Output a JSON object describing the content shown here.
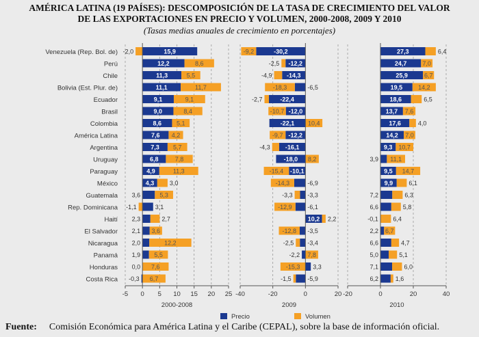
{
  "title_line1": "AMÉRICA LATINA (19 PAÍSES): DESCOMPOSICIÓN DE LA TASA DE CRECIMIENTO DEL VALOR",
  "title_line2": "DE LAS EXPORTACIONES EN PRECIO Y VOLUMEN, 2000-2008, 2009 Y 2010",
  "subtitle": "(Tasas medias anuales de crecimiento en porcentajes)",
  "source_label": "Fuente:",
  "source_text": "Comisión Económica para América Latina y el Caribe (CEPAL), sobre la base de información oficial.",
  "colors": {
    "precio": "#1b3990",
    "volumen": "#f5a025"
  },
  "chart_data": {
    "type": "bar",
    "orientation": "horizontal-stacked-diverging",
    "categories": [
      "Venezuela (Rep. Bol. de)",
      "Perú",
      "Chile",
      "Bolivia (Est. Plur. de)",
      "Ecuador",
      "Brasil",
      "Colombia",
      "América Latina",
      "Argentina",
      "Uruguay",
      "Paraguay",
      "México",
      "Guatemala",
      "Rep. Dominicana",
      "Haití",
      "El Salvador",
      "Nicaragua",
      "Panamá",
      "Honduras",
      "Costa Rica"
    ],
    "legend": [
      "Precio",
      "Volumen"
    ],
    "legend_position": "bottom",
    "grid": true,
    "panels": [
      {
        "xlabel": "2000-2008",
        "xlim": [
          -5,
          25
        ],
        "ticks": [
          -5,
          0,
          5,
          10,
          15,
          20,
          25
        ],
        "precio": [
          15.9,
          12.2,
          11.3,
          11.1,
          9.1,
          9.0,
          8.6,
          7.6,
          7.3,
          6.8,
          4.9,
          4.3,
          3.6,
          3.1,
          2.3,
          2.1,
          2.0,
          1.9,
          0.0,
          -0.3
        ],
        "volumen": [
          -2.0,
          8.6,
          5.5,
          11.7,
          9.1,
          8.4,
          5.1,
          4.2,
          5.7,
          7.8,
          11.3,
          3.0,
          5.3,
          -1.1,
          2.7,
          3.6,
          12.2,
          5.5,
          7.6,
          6.7
        ]
      },
      {
        "xlabel": "2009",
        "xlim": [
          -40,
          20
        ],
        "ticks": [
          -40,
          -20,
          0,
          20
        ],
        "precio": [
          -30.2,
          -12.2,
          -14.3,
          -6.5,
          -22.4,
          -12.0,
          -22.1,
          -12.2,
          -16.1,
          -18.0,
          -10.1,
          -6.9,
          -3.3,
          -6.1,
          10.2,
          -3.5,
          -3.4,
          -2.2,
          3.3,
          -5.9
        ],
        "volumen": [
          -9.2,
          -2.5,
          -4.9,
          -18.3,
          -2.7,
          -10.7,
          10.4,
          -9.7,
          -4.3,
          8.2,
          -15.4,
          -14.3,
          -3.3,
          -12.9,
          2.2,
          -12.8,
          -2.5,
          7.8,
          -15.3,
          -1.5
        ]
      },
      {
        "xlabel": "2010",
        "xlim": [
          -20,
          40
        ],
        "ticks": [
          -20,
          0,
          20,
          40
        ],
        "precio": [
          27.3,
          24.7,
          25.9,
          19.5,
          18.6,
          13.7,
          17.6,
          14.2,
          9.3,
          3.9,
          9.5,
          9.9,
          7.2,
          6.6,
          -0.1,
          2.2,
          6.6,
          5.0,
          7.1,
          6.2
        ],
        "volumen": [
          6.4,
          7.0,
          6.7,
          14.2,
          6.5,
          7.6,
          4.0,
          7.0,
          10.7,
          11.1,
          14.7,
          6.1,
          6.3,
          5.8,
          6.4,
          6.7,
          4.7,
          5.1,
          6.0,
          1.6
        ]
      }
    ]
  }
}
